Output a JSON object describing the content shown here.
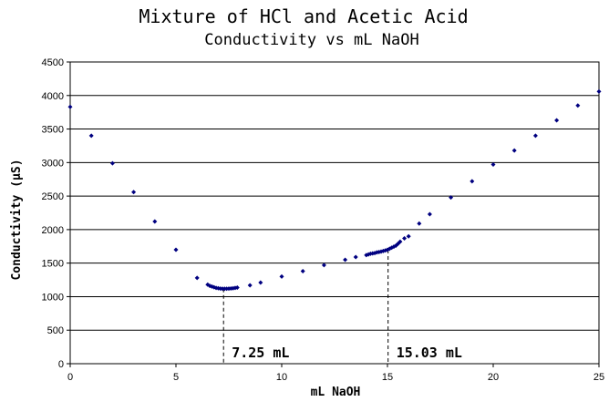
{
  "chart_data": {
    "type": "scatter",
    "title": "Mixture of HCl and Acetic Acid",
    "subtitle": "Conductivity vs mL NaOH",
    "xlabel": "mL NaOH",
    "ylabel": "Conductivity (µS)",
    "xlim": [
      0,
      25
    ],
    "ylim": [
      0,
      4500
    ],
    "xticks": [
      0,
      5,
      10,
      15,
      20,
      25
    ],
    "yticks": [
      0,
      500,
      1000,
      1500,
      2000,
      2500,
      3000,
      3500,
      4000,
      4500
    ],
    "grid": "horizontal",
    "marker_color": "#000080",
    "points": [
      [
        0,
        3830
      ],
      [
        1,
        3400
      ],
      [
        2,
        2990
      ],
      [
        3,
        2560
      ],
      [
        4,
        2120
      ],
      [
        5,
        1700
      ],
      [
        6,
        1280
      ],
      [
        6.5,
        1180
      ],
      [
        6.6,
        1160
      ],
      [
        6.7,
        1150
      ],
      [
        6.8,
        1140
      ],
      [
        6.9,
        1130
      ],
      [
        7.0,
        1125
      ],
      [
        7.1,
        1120
      ],
      [
        7.2,
        1118
      ],
      [
        7.3,
        1118
      ],
      [
        7.4,
        1118
      ],
      [
        7.5,
        1120
      ],
      [
        7.6,
        1122
      ],
      [
        7.7,
        1125
      ],
      [
        7.8,
        1130
      ],
      [
        7.9,
        1135
      ],
      [
        8.5,
        1170
      ],
      [
        9,
        1210
      ],
      [
        10,
        1300
      ],
      [
        11,
        1380
      ],
      [
        12,
        1470
      ],
      [
        13,
        1550
      ],
      [
        13.5,
        1590
      ],
      [
        14,
        1620
      ],
      [
        14.1,
        1630
      ],
      [
        14.2,
        1640
      ],
      [
        14.3,
        1645
      ],
      [
        14.4,
        1650
      ],
      [
        14.5,
        1660
      ],
      [
        14.6,
        1665
      ],
      [
        14.7,
        1672
      ],
      [
        14.8,
        1680
      ],
      [
        14.9,
        1690
      ],
      [
        15.0,
        1700
      ],
      [
        15.1,
        1715
      ],
      [
        15.2,
        1730
      ],
      [
        15.3,
        1745
      ],
      [
        15.4,
        1760
      ],
      [
        15.5,
        1790
      ],
      [
        15.6,
        1820
      ],
      [
        15.8,
        1870
      ],
      [
        16.0,
        1900
      ],
      [
        16.5,
        2090
      ],
      [
        17,
        2230
      ],
      [
        18,
        2480
      ],
      [
        19,
        2720
      ],
      [
        20,
        2970
      ],
      [
        21,
        3180
      ],
      [
        22,
        3400
      ],
      [
        23,
        3630
      ],
      [
        24,
        3850
      ],
      [
        25,
        4060
      ]
    ],
    "annotations": [
      {
        "label": "7.25 mL",
        "x": 7.25,
        "y_from": 0,
        "y_to": 1118
      },
      {
        "label": "15.03 mL",
        "x": 15.03,
        "y_from": 0,
        "y_to": 1700
      }
    ]
  }
}
